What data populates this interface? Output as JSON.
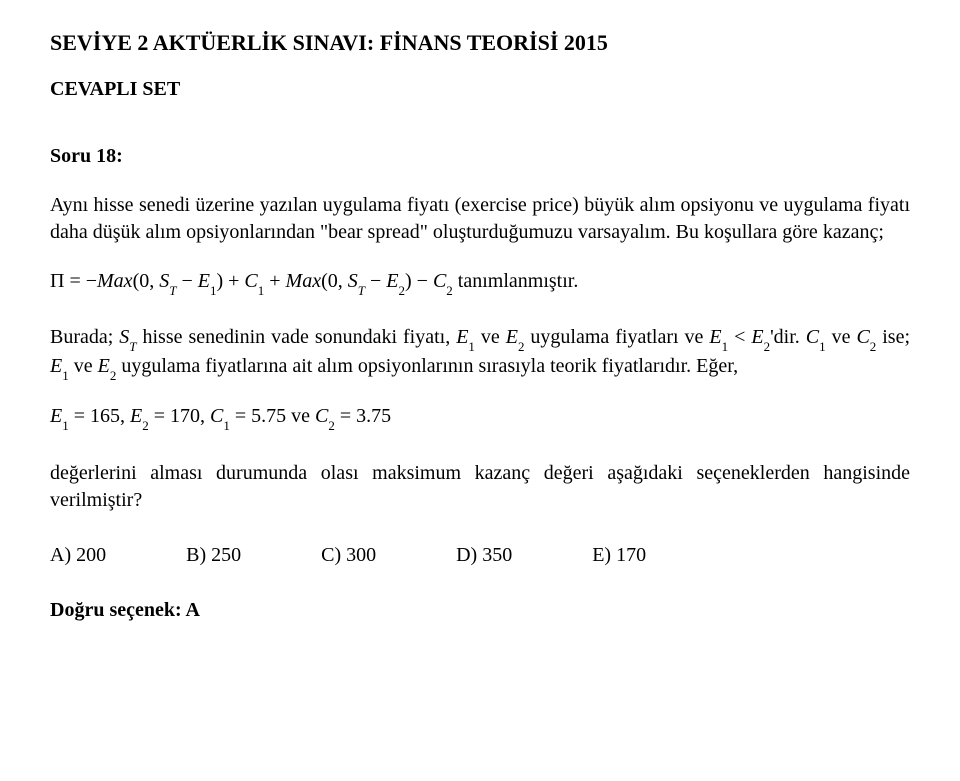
{
  "header": {
    "title": "SEVİYE 2 AKTÜERLİK SINAVI: FİNANS  TEORİSİ 2015",
    "subtitle": "CEVAPLI SET"
  },
  "question": {
    "label": "Soru 18:",
    "p1": "Aynı hisse senedi üzerine yazılan uygulama fiyatı (exercise price) büyük alım opsiyonu ve uygulama fiyatı daha düşük alım opsiyonlarından \"bear spread\" oluşturduğumuzu varsayalım. Bu koşullara  göre kazanç;",
    "eq1": {
      "lhs": "Π = −",
      "max1": "Max",
      "arg1a": "(0, ",
      "ST": "S",
      "Tsub": "T",
      "minus": " − ",
      "E": "E",
      "one": "1",
      "rp": ")",
      "plus": " + ",
      "C": "C",
      "arg2a": "(0, ",
      "two": "2",
      "tail": " tanımlanmıştır."
    },
    "p2a": "Burada; ",
    "p2b": " hisse senedinin vade sonundaki fiyatı, ",
    "p2c": " ve ",
    "p2d": " uygulama fiyatları ve ",
    "p2e": "'dir. ",
    "p2f": " ise; ",
    "p2g": " uygulama fiyatlarına ait alım opsiyonlarının sırasıyla teorik fiyatlarıdır. Eğer,",
    "lt": " < ",
    "eq2": {
      "e1": "= 165",
      "comma": ", ",
      "e2": "= 170",
      "c1": "= 5.75",
      "ve": " ve ",
      "c2": "= 3.75"
    },
    "p3": "değerlerini alması durumunda olası maksimum kazanç değeri aşağıdaki seçeneklerden hangisinde verilmiştir?",
    "options": {
      "a": "A) 200",
      "b": "B) 250",
      "c": "C) 300",
      "d": "D) 350",
      "e": "E) 170"
    },
    "answer": "Doğru seçenek: A"
  }
}
